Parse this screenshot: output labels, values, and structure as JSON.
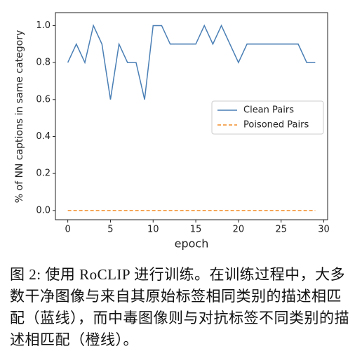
{
  "chart_data": {
    "type": "line",
    "ylabel": "% of NN captions in same category",
    "xlabel": "epoch",
    "x": [
      0,
      1,
      2,
      3,
      4,
      5,
      6,
      7,
      8,
      9,
      10,
      11,
      12,
      13,
      14,
      15,
      16,
      17,
      18,
      19,
      20,
      21,
      22,
      23,
      24,
      25,
      26,
      27,
      28,
      29
    ],
    "series": [
      {
        "name": "Clean Pairs",
        "color": "#4a7fb5",
        "dash": "solid",
        "values": [
          0.8,
          0.9,
          0.8,
          1.0,
          0.9,
          0.6,
          0.9,
          0.8,
          0.8,
          0.6,
          1.0,
          1.0,
          0.9,
          0.9,
          0.9,
          0.9,
          1.0,
          0.9,
          1.0,
          0.9,
          0.8,
          0.9,
          0.9,
          0.9,
          0.9,
          0.9,
          0.9,
          0.9,
          0.8,
          0.8
        ]
      },
      {
        "name": "Poisoned Pairs",
        "color": "#f28e2b",
        "dash": "dashed",
        "values": [
          0,
          0,
          0,
          0,
          0,
          0,
          0,
          0,
          0,
          0,
          0,
          0,
          0,
          0,
          0,
          0,
          0,
          0,
          0,
          0,
          0,
          0,
          0,
          0,
          0,
          0,
          0,
          0,
          0,
          0
        ]
      }
    ],
    "xlim": [
      -1.45,
      30.45
    ],
    "xticks": [
      0,
      5,
      10,
      15,
      20,
      25,
      30
    ],
    "ylim": [
      -0.05,
      1.07
    ],
    "yticks": [
      {
        "value": 0,
        "label": "0.0"
      },
      0.2,
      0.4,
      0.6,
      0.8,
      {
        "value": 1,
        "label": "1.0"
      }
    ],
    "legend": "center right",
    "caption": "图 2: 使用 RoCLIP 进行训练。在训练过程中，大多数干净图像与来自其原始标签相同类别的描述相匹配（蓝线），而中毒图像则与对抗标签不同类别的描述相匹配（橙线）。"
  }
}
